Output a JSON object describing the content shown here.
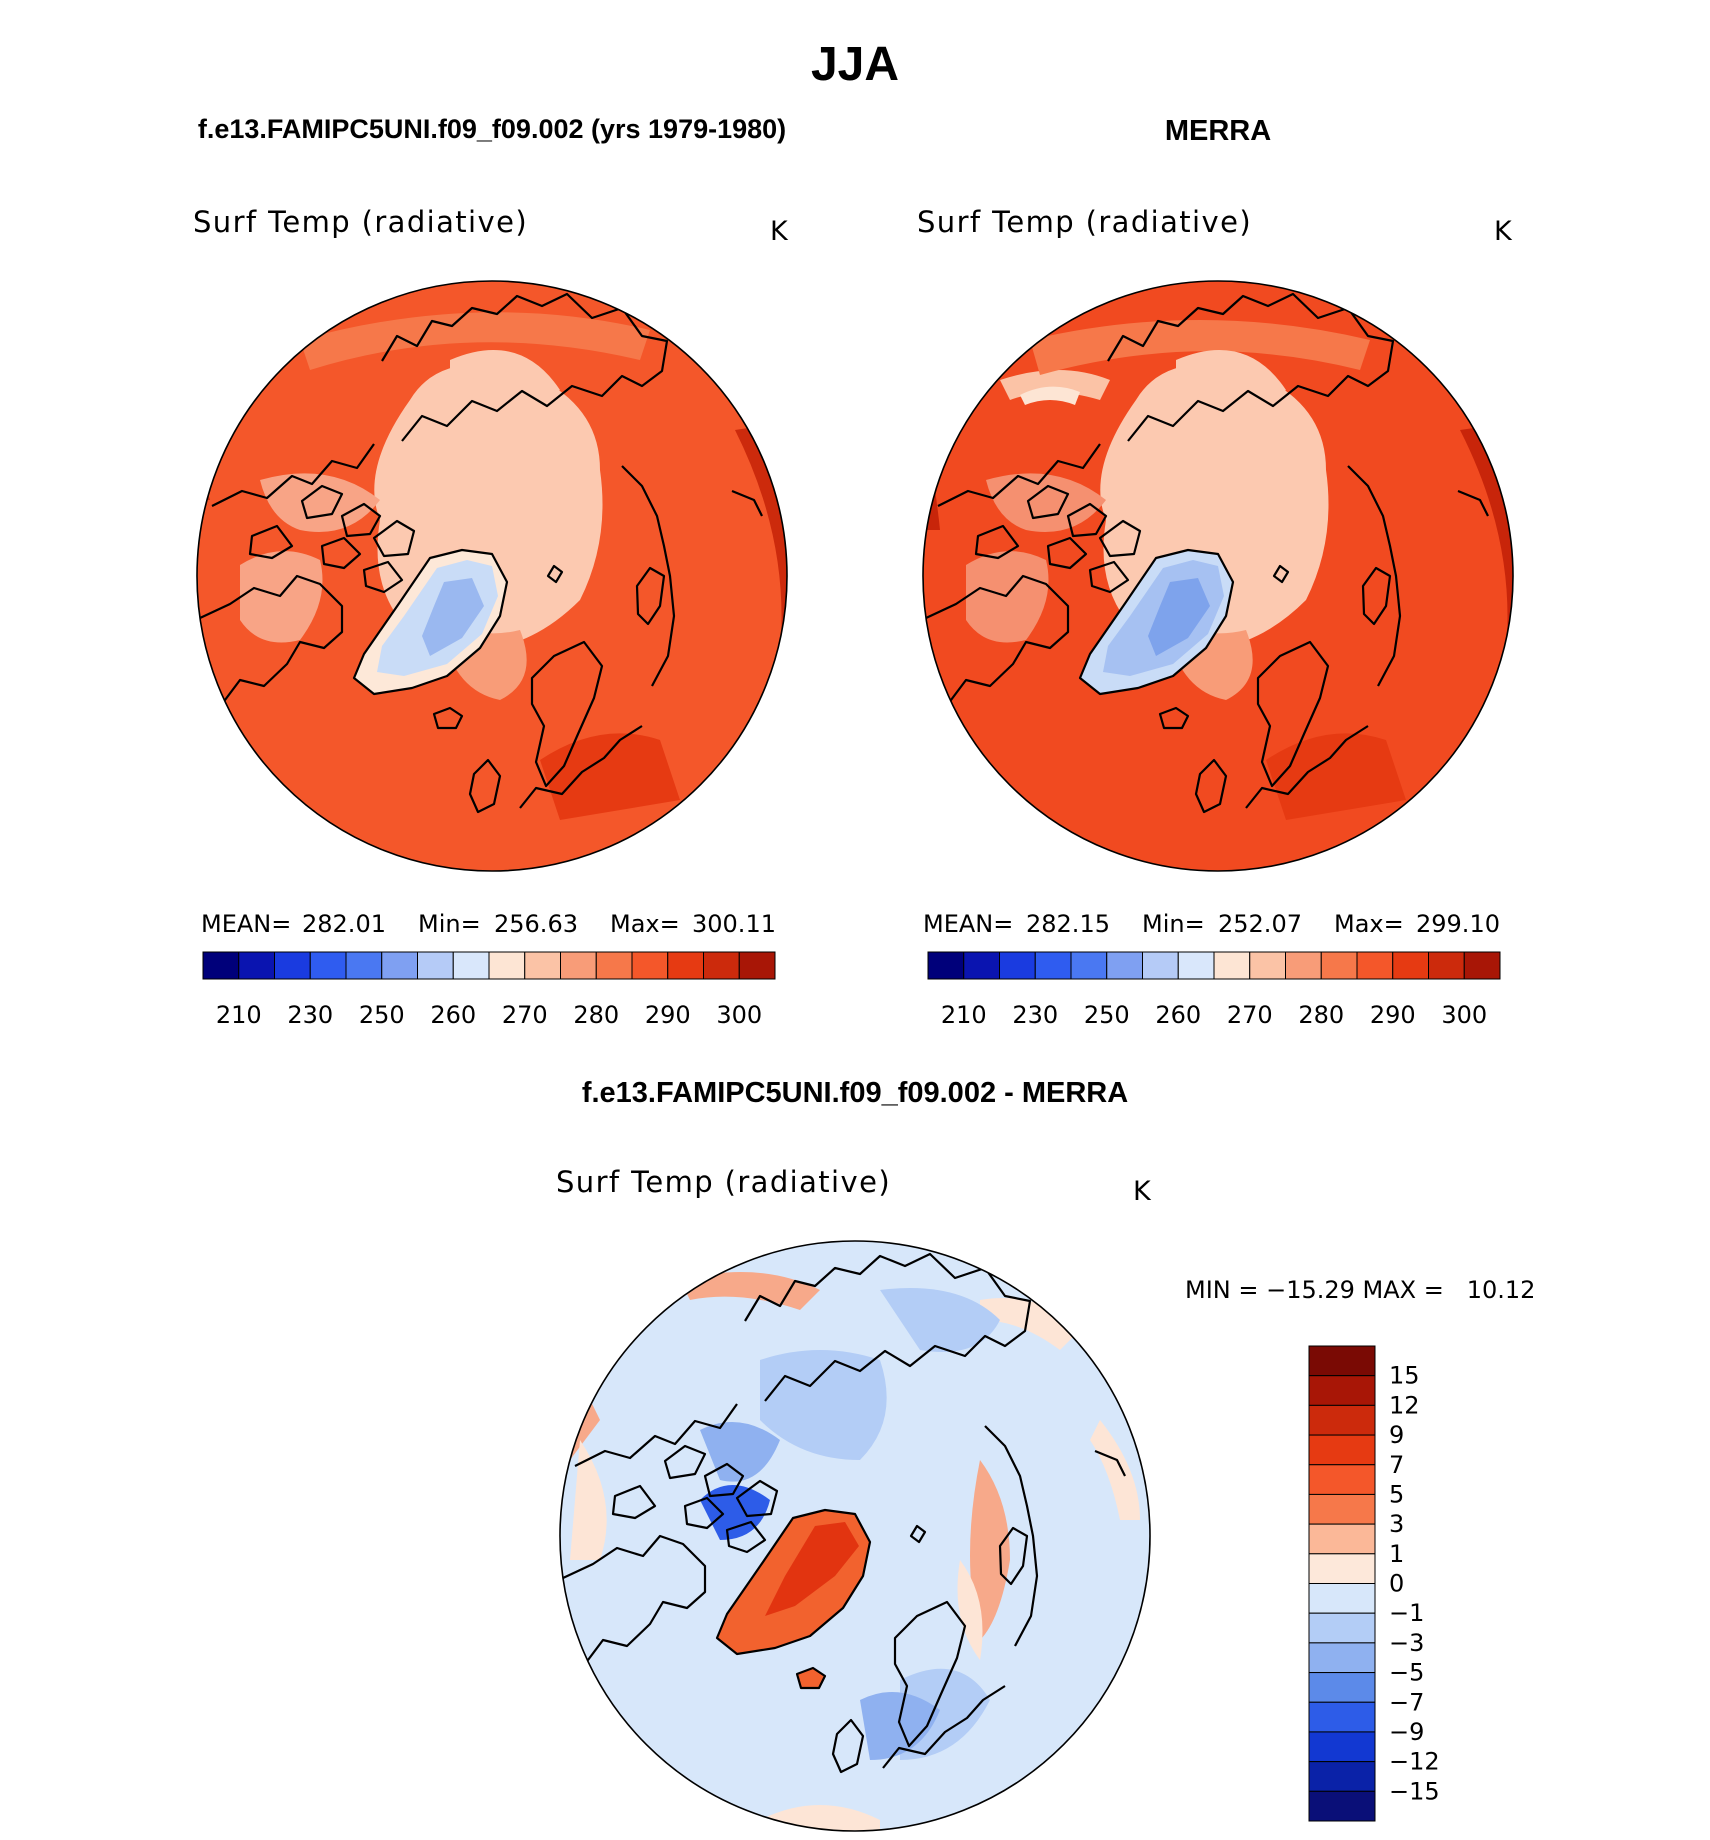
{
  "title": "JJA",
  "panels": [
    {
      "id": "model",
      "case_title": "f.e13.FAMIPC5UNI.f09_f09.002 (yrs 1979-1980)",
      "variable": "Surf Temp (radiative)",
      "units": "K",
      "stats": {
        "mean_label": "MEAN=",
        "mean": "282.01",
        "min_label": "Min=",
        "min": "256.63",
        "max_label": "Max=",
        "max": "300.11"
      },
      "colors": {
        "ocean": "#f4572a",
        "ocean_warm": "#e63a12",
        "ocean_hot": "#cc2a0c",
        "arctic": "#fcc9b0",
        "ice_edge": "#fdddc8",
        "land_cold": "#f8a486",
        "green_outer": "#fde8d8",
        "green_mid": "#c9dcf7",
        "green_core": "#9ab8f0",
        "europe": "#e63a12"
      }
    },
    {
      "id": "obs",
      "case_title": "MERRA",
      "variable": "Surf Temp (radiative)",
      "units": "K",
      "stats": {
        "mean_label": "MEAN=",
        "mean": "282.15",
        "min_label": "Min=",
        "min": "252.07",
        "max_label": "Max=",
        "max": "299.10"
      },
      "colors": {
        "ocean": "#f14a20",
        "ocean_warm": "#e23410",
        "ocean_hot": "#c8250a",
        "arctic": "#fcc9b0",
        "ice_edge": "#fdddc8",
        "land_cold": "#f59070",
        "green_outer": "#c9dcf7",
        "green_mid": "#a6c1f2",
        "green_core": "#7ea3ec",
        "europe": "#e63a12"
      }
    }
  ],
  "diff": {
    "case_title": "f.e13.FAMIPC5UNI.f09_f09.002 - MERRA",
    "variable": "Surf Temp (radiative)",
    "units": "K",
    "minmax_label": "MIN = −15.29 MAX =   10.12",
    "colors": {
      "base": "#d7e7fa",
      "cool": "#b3cdf6",
      "cooler": "#8fb1f0",
      "coldest": "#2d5ce8",
      "warm": "#fde5d6",
      "warmer": "#f7a98a",
      "hot": "#f2622e"
    }
  },
  "chart_data": [
    {
      "type": "heatmap",
      "projection": "north polar stereographic",
      "title": "f.e13.FAMIPC5UNI.f09_f09.002 (yrs 1979-1980)",
      "variable": "Surf Temp (radiative)",
      "units": "K",
      "mean": 282.01,
      "min": 256.63,
      "max": 300.11,
      "colorbar": {
        "levels": [
          210,
          220,
          230,
          240,
          250,
          255,
          260,
          265,
          270,
          275,
          280,
          285,
          290,
          295,
          300
        ],
        "tick_labels": [
          "210",
          "230",
          "250",
          "260",
          "270",
          "280",
          "290",
          "300"
        ],
        "colors": [
          "#00007a",
          "#0a14b0",
          "#1a3be0",
          "#2f5cf0",
          "#4a78f2",
          "#7fa0f2",
          "#b5cbf7",
          "#d9e7fb",
          "#fde5d4",
          "#fbc3a6",
          "#f89c78",
          "#f6784a",
          "#f4572a",
          "#e63a12",
          "#cc2a0c",
          "#a81606"
        ]
      }
    },
    {
      "type": "heatmap",
      "projection": "north polar stereographic",
      "title": "MERRA",
      "variable": "Surf Temp (radiative)",
      "units": "K",
      "mean": 282.15,
      "min": 252.07,
      "max": 299.1,
      "colorbar": {
        "levels": [
          210,
          220,
          230,
          240,
          250,
          255,
          260,
          265,
          270,
          275,
          280,
          285,
          290,
          295,
          300
        ],
        "tick_labels": [
          "210",
          "230",
          "250",
          "260",
          "270",
          "280",
          "290",
          "300"
        ],
        "colors": [
          "#00007a",
          "#0a14b0",
          "#1a3be0",
          "#2f5cf0",
          "#4a78f2",
          "#7fa0f2",
          "#b5cbf7",
          "#d9e7fb",
          "#fde5d4",
          "#fbc3a6",
          "#f89c78",
          "#f6784a",
          "#f4572a",
          "#e63a12",
          "#cc2a0c",
          "#a81606"
        ]
      }
    },
    {
      "type": "heatmap",
      "projection": "north polar stereographic",
      "title": "f.e13.FAMIPC5UNI.f09_f09.002 - MERRA",
      "variable": "Surf Temp (radiative)",
      "units": "K",
      "min": -15.29,
      "max": 10.12,
      "colorbar": {
        "orientation": "vertical",
        "tick_labels": [
          "15",
          "12",
          "9",
          "7",
          "5",
          "3",
          "1",
          "0",
          "−1",
          "−3",
          "−5",
          "−7",
          "−9",
          "−12",
          "−15"
        ],
        "colors": [
          "#7a0a04",
          "#a81606",
          "#cc2a0c",
          "#e63a12",
          "#f4572a",
          "#f6784a",
          "#fbb898",
          "#fde8da",
          "#d7e7fa",
          "#b3cdf6",
          "#8fb1f0",
          "#5c8ae9",
          "#2d5ce8",
          "#1238d2",
          "#0a22a8",
          "#0a0f78"
        ]
      }
    }
  ]
}
